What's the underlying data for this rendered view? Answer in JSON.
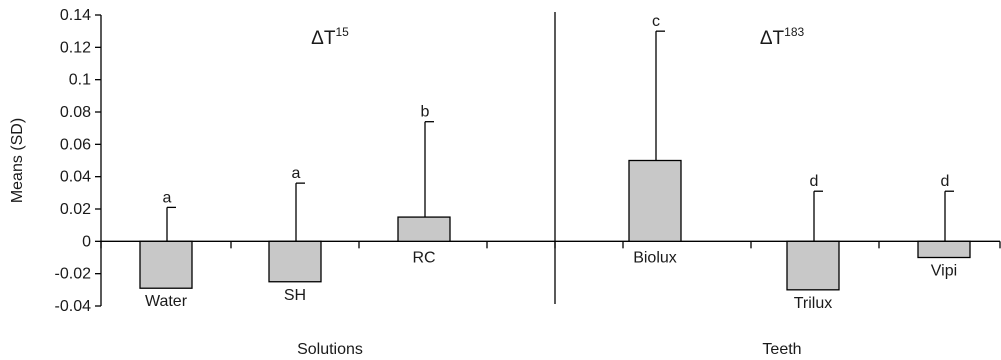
{
  "chart_data": {
    "type": "bar",
    "ylabel": "Means (SD)",
    "ylim": [
      -0.04,
      0.14
    ],
    "y_ticks": [
      "0.14",
      "0.12",
      "0.1",
      "0.08",
      "0.06",
      "0.04",
      "0.02",
      "0",
      "-0.02",
      "-0.04"
    ],
    "bar_color": "#c8c8c8",
    "grid": false,
    "groups": [
      {
        "name": "Solutions",
        "annotation": {
          "symbol": "ΔT",
          "superscript": "15"
        },
        "categories": [
          "Water",
          "SH",
          "RC"
        ],
        "values": [
          -0.029,
          -0.025,
          0.015
        ],
        "error_bar_top": [
          0.021,
          0.036,
          0.074
        ],
        "letters": [
          "a",
          "a",
          "b"
        ]
      },
      {
        "name": "Teeth",
        "annotation": {
          "symbol": "ΔT",
          "superscript": "183"
        },
        "categories": [
          "Biolux",
          "Trilux",
          "Vipi"
        ],
        "values": [
          0.05,
          -0.03,
          -0.01
        ],
        "error_bar_top": [
          0.13,
          0.031,
          0.031
        ],
        "letters": [
          "c",
          "d",
          "d"
        ]
      }
    ]
  }
}
